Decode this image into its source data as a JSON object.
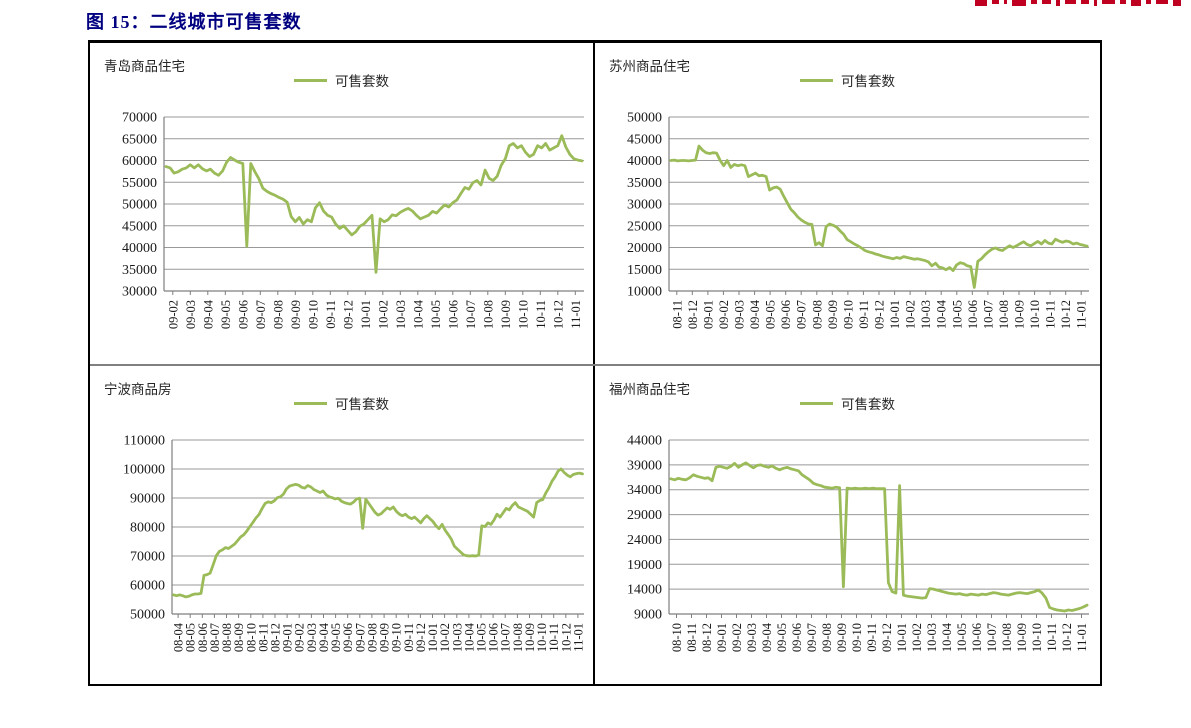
{
  "page": {
    "figure_label": "图 15：二线城市可售套数",
    "accent_color": "#000080",
    "line_color": "#9bbb59",
    "grid_color": "#999999",
    "axis_color": "#7f7f7f"
  },
  "header": {
    "clipped_text_color": "#c00021",
    "clipped_marks": [
      12,
      7,
      3,
      14,
      6,
      9,
      4,
      11,
      8,
      3,
      13,
      6,
      10,
      5,
      12,
      8
    ]
  },
  "chart_data": [
    {
      "type": "line",
      "title": "青岛商品住宅",
      "legend": "可售套数",
      "line_color": "#9bbb59",
      "ylim": [
        30000,
        70000
      ],
      "y_ticks": [
        70000,
        65000,
        60000,
        55000,
        50000,
        45000,
        40000,
        35000,
        30000
      ],
      "x_labels": [
        "09-02",
        "09-03",
        "09-04",
        "09-05",
        "09-06",
        "09-07",
        "09-08",
        "09-09",
        "09-10",
        "09-11",
        "09-12",
        "10-01",
        "10-02",
        "10-03",
        "10-04",
        "10-05",
        "10-06",
        "10-07",
        "10-08",
        "10-09",
        "10-10",
        "10-11",
        "10-12",
        "11-01"
      ],
      "values": [
        58600,
        58300,
        57100,
        57400,
        58000,
        58300,
        59000,
        58300,
        59000,
        58100,
        57600,
        58000,
        57100,
        56600,
        57600,
        59600,
        60700,
        60100,
        59600,
        59300,
        40300,
        59300,
        57400,
        55800,
        53600,
        52900,
        52400,
        52000,
        51500,
        51100,
        50400,
        47100,
        45900,
        46900,
        45400,
        46400,
        45900,
        49100,
        50300,
        48400,
        47400,
        47000,
        45400,
        44400,
        45000,
        43900,
        42900,
        43600,
        44900,
        45400,
        46400,
        47400,
        34300,
        46600,
        45900,
        46400,
        47500,
        47300,
        48100,
        48600,
        49000,
        48400,
        47400,
        46600,
        47000,
        47400,
        48300,
        47900,
        48900,
        49800,
        49300,
        50300,
        50900,
        52400,
        53800,
        53400,
        54900,
        55400,
        54400,
        57800,
        55900,
        55400,
        56400,
        58900,
        60400,
        63400,
        63900,
        62900,
        63400,
        61900,
        60900,
        61400,
        63400,
        62900,
        63900,
        62400,
        62900,
        63400,
        65700,
        63100,
        61400,
        60400,
        60100,
        59900
      ]
    },
    {
      "type": "line",
      "title": "苏州商品住宅",
      "legend": "可售套数",
      "line_color": "#9bbb59",
      "ylim": [
        10000,
        50000
      ],
      "y_ticks": [
        50000,
        45000,
        40000,
        35000,
        30000,
        25000,
        20000,
        15000,
        10000
      ],
      "x_labels": [
        "08-11",
        "08-12",
        "09-01",
        "09-02",
        "09-03",
        "09-04",
        "09-05",
        "09-06",
        "09-07",
        "09-08",
        "09-09",
        "09-10",
        "09-11",
        "09-12",
        "10-01",
        "10-02",
        "10-03",
        "10-04",
        "10-05",
        "10-06",
        "10-07",
        "10-08",
        "10-09",
        "10-10",
        "10-11",
        "10-12",
        "11-01"
      ],
      "values": [
        40000,
        40100,
        39900,
        40000,
        40000,
        39900,
        40000,
        40100,
        43300,
        42400,
        41800,
        41600,
        41800,
        41700,
        40000,
        38800,
        40000,
        38400,
        39100,
        38800,
        39000,
        38800,
        36300,
        36700,
        37100,
        36500,
        36600,
        36300,
        33200,
        33700,
        33900,
        33400,
        31800,
        30300,
        28800,
        28000,
        27000,
        26300,
        25800,
        25400,
        25300,
        20600,
        21100,
        20400,
        24800,
        25400,
        25100,
        24700,
        23800,
        23000,
        21800,
        21300,
        20800,
        20400,
        19900,
        19300,
        19000,
        18800,
        18500,
        18300,
        18000,
        17800,
        17600,
        17400,
        17700,
        17500,
        17900,
        17700,
        17500,
        17300,
        17400,
        17200,
        17000,
        16700,
        15800,
        16400,
        15500,
        15300,
        14900,
        15400,
        14700,
        16000,
        16500,
        16300,
        15800,
        15600,
        10800,
        16800,
        17400,
        18300,
        19000,
        19600,
        19900,
        19500,
        19300,
        19900,
        20400,
        20000,
        20400,
        20900,
        21300,
        20700,
        20400,
        20900,
        21400,
        20800,
        21600,
        21000,
        20800,
        21900,
        21500,
        21200,
        21500,
        21300,
        20800,
        21000,
        20700,
        20500,
        20300
      ]
    },
    {
      "type": "line",
      "title": "宁波商品房",
      "legend": "可售套数",
      "line_color": "#9bbb59",
      "ylim": [
        50000,
        110000
      ],
      "y_ticks": [
        110000,
        100000,
        90000,
        80000,
        70000,
        60000,
        50000
      ],
      "x_labels": [
        "08-04",
        "08-05",
        "08-06",
        "08-07",
        "08-08",
        "08-09",
        "08-10",
        "08-11",
        "08-12",
        "09-01",
        "09-02",
        "09-03",
        "09-04",
        "09-05",
        "09-06",
        "09-07",
        "09-08",
        "09-09",
        "09-10",
        "09-11",
        "09-12",
        "10-01",
        "10-02",
        "10-03",
        "10-04",
        "10-05",
        "10-06",
        "10-07",
        "10-08",
        "10-09",
        "10-10",
        "10-11",
        "10-12",
        "11-01"
      ],
      "values": [
        56600,
        56300,
        56600,
        56300,
        55900,
        56100,
        56600,
        56900,
        56900,
        57100,
        63300,
        63600,
        64100,
        67000,
        70100,
        71600,
        72100,
        72900,
        72600,
        73300,
        74100,
        75300,
        76600,
        77300,
        78600,
        80100,
        81600,
        83100,
        84300,
        86300,
        88100,
        88700,
        88400,
        89000,
        90100,
        90400,
        91300,
        93100,
        94100,
        94400,
        94700,
        94400,
        93700,
        93400,
        94300,
        93800,
        92900,
        92400,
        91900,
        92400,
        91100,
        90400,
        90100,
        89700,
        89900,
        88900,
        88400,
        88100,
        87900,
        88600,
        89700,
        89900,
        79500,
        89600,
        88100,
        86600,
        85100,
        84100,
        84600,
        85600,
        86600,
        86100,
        86900,
        85400,
        84400,
        83900,
        84400,
        83400,
        82900,
        83400,
        82400,
        81400,
        82900,
        83900,
        82900,
        81900,
        80400,
        79400,
        80900,
        78900,
        77400,
        75900,
        73400,
        72400,
        71400,
        70400,
        70100,
        70000,
        70100,
        70000,
        70300,
        80400,
        80100,
        81400,
        80900,
        82400,
        84400,
        83400,
        84900,
        86400,
        85900,
        87400,
        88400,
        86900,
        86400,
        85900,
        85400,
        84400,
        83400,
        88400,
        89100,
        89500,
        91800,
        93500,
        95800,
        97300,
        99300,
        100000,
        98800,
        97900,
        97300,
        98100,
        98400,
        98600,
        98300
      ]
    },
    {
      "type": "line",
      "title": "福州商品住宅",
      "legend": "可售套数",
      "line_color": "#9bbb59",
      "ylim": [
        9000,
        44000
      ],
      "y_ticks": [
        44000,
        39000,
        34000,
        29000,
        24000,
        19000,
        14000,
        9000
      ],
      "x_labels": [
        "08-10",
        "08-11",
        "08-12",
        "09-01",
        "09-02",
        "09-03",
        "09-04",
        "09-05",
        "09-06",
        "09-07",
        "09-08",
        "09-09",
        "09-10",
        "09-11",
        "09-12",
        "10-01",
        "10-02",
        "10-03",
        "10-04",
        "10-05",
        "10-06",
        "10-07",
        "10-08",
        "10-09",
        "10-10",
        "10-11",
        "10-12",
        "11-01"
      ],
      "values": [
        36200,
        36000,
        36300,
        36100,
        36000,
        36400,
        37000,
        36700,
        36500,
        36300,
        36400,
        35800,
        38500,
        38700,
        38500,
        38300,
        38700,
        39300,
        38500,
        39000,
        39400,
        38900,
        38400,
        38900,
        39000,
        38700,
        38500,
        38800,
        38300,
        38000,
        38300,
        38500,
        38200,
        38000,
        37800,
        37000,
        36500,
        36000,
        35300,
        35000,
        34800,
        34500,
        34400,
        34300,
        34500,
        34400,
        14500,
        34300,
        34200,
        34300,
        34200,
        34200,
        34300,
        34200,
        34300,
        34200,
        34200,
        34200,
        15300,
        13500,
        13200,
        34800,
        12800,
        12600,
        12500,
        12400,
        12300,
        12200,
        12300,
        14100,
        14000,
        13800,
        13600,
        13400,
        13200,
        13100,
        13000,
        13100,
        12900,
        12800,
        13000,
        12900,
        12800,
        13000,
        12900,
        13100,
        13300,
        13200,
        13000,
        12900,
        12800,
        13000,
        13200,
        13300,
        13200,
        13100,
        13300,
        13500,
        13800,
        13200,
        12200,
        10300,
        10000,
        9800,
        9700,
        9600,
        9800,
        9700,
        9900,
        10100,
        10400,
        10800
      ]
    }
  ]
}
